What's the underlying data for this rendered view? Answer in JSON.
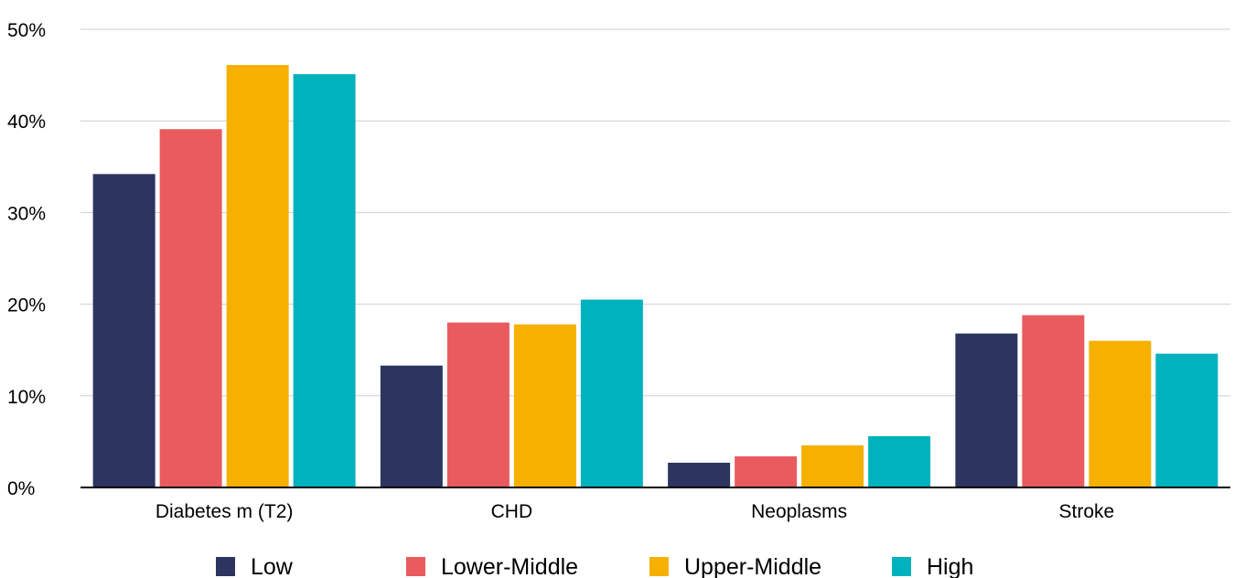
{
  "chart_data": {
    "type": "bar",
    "categories": [
      "Diabetes m (T2)",
      "CHD",
      "Neoplasms",
      "Stroke"
    ],
    "series": [
      {
        "name": "Low",
        "color": "#2c3560",
        "values": [
          34.2,
          13.3,
          2.7,
          16.8
        ]
      },
      {
        "name": "Lower-Middle",
        "color": "#e95b5e",
        "values": [
          39.1,
          18.0,
          3.4,
          18.8
        ]
      },
      {
        "name": "Upper-Middle",
        "color": "#f5b000",
        "values": [
          46.1,
          17.8,
          4.6,
          16.0
        ]
      },
      {
        "name": "High",
        "color": "#00b2bd",
        "values": [
          45.1,
          20.5,
          5.6,
          14.6
        ]
      }
    ],
    "yticks": [
      "0%",
      "10%",
      "20%",
      "30%",
      "40%",
      "50%"
    ],
    "ylim": [
      0,
      50
    ],
    "grid": true,
    "legend_position": "bottom"
  }
}
